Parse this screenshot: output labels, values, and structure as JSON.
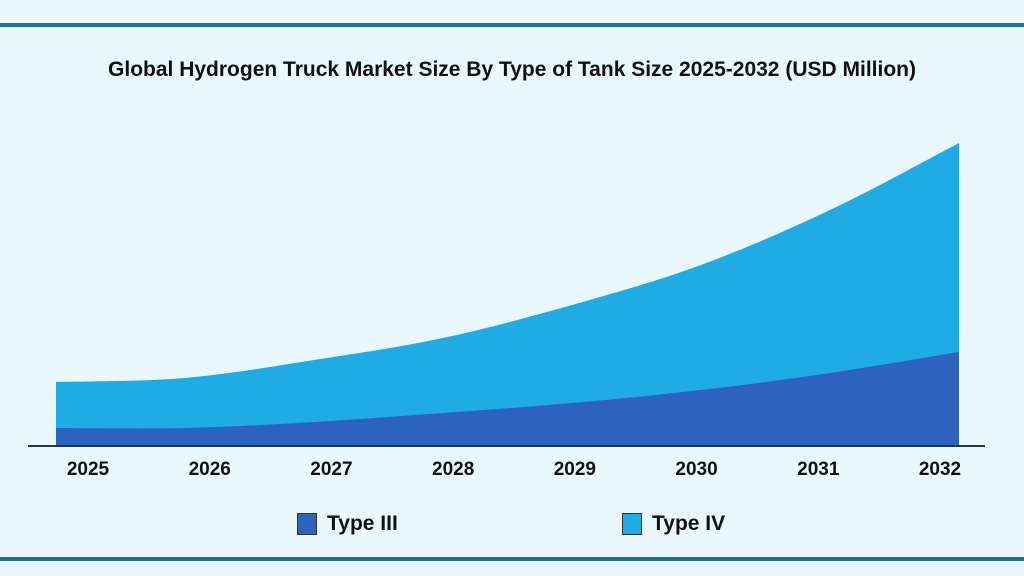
{
  "chart_data": {
    "type": "area",
    "stacked": true,
    "title": "Global Hydrogen Truck Market Size By Type of Tank Size 2025-2032 (USD Million)",
    "xlabel": "",
    "ylabel": "",
    "categories": [
      "2025",
      "2026",
      "2027",
      "2028",
      "2029",
      "2030",
      "2031",
      "2032"
    ],
    "series": [
      {
        "name": "Type III",
        "color": "#2d63bf",
        "values": [
          18,
          18,
          24,
          33,
          43,
          56,
          73,
          94
        ]
      },
      {
        "name": "Type IV",
        "color": "#1fabe3",
        "values": [
          46,
          50,
          62,
          75,
          98,
          125,
          163,
          209
        ]
      }
    ],
    "ylim": [
      0,
      320
    ],
    "grid": false,
    "legend": "bottom",
    "y_axis_shown": false
  },
  "colors": {
    "background": "#eaf8fe",
    "rule": "#1b6f9c",
    "axis": "#1f3550"
  }
}
